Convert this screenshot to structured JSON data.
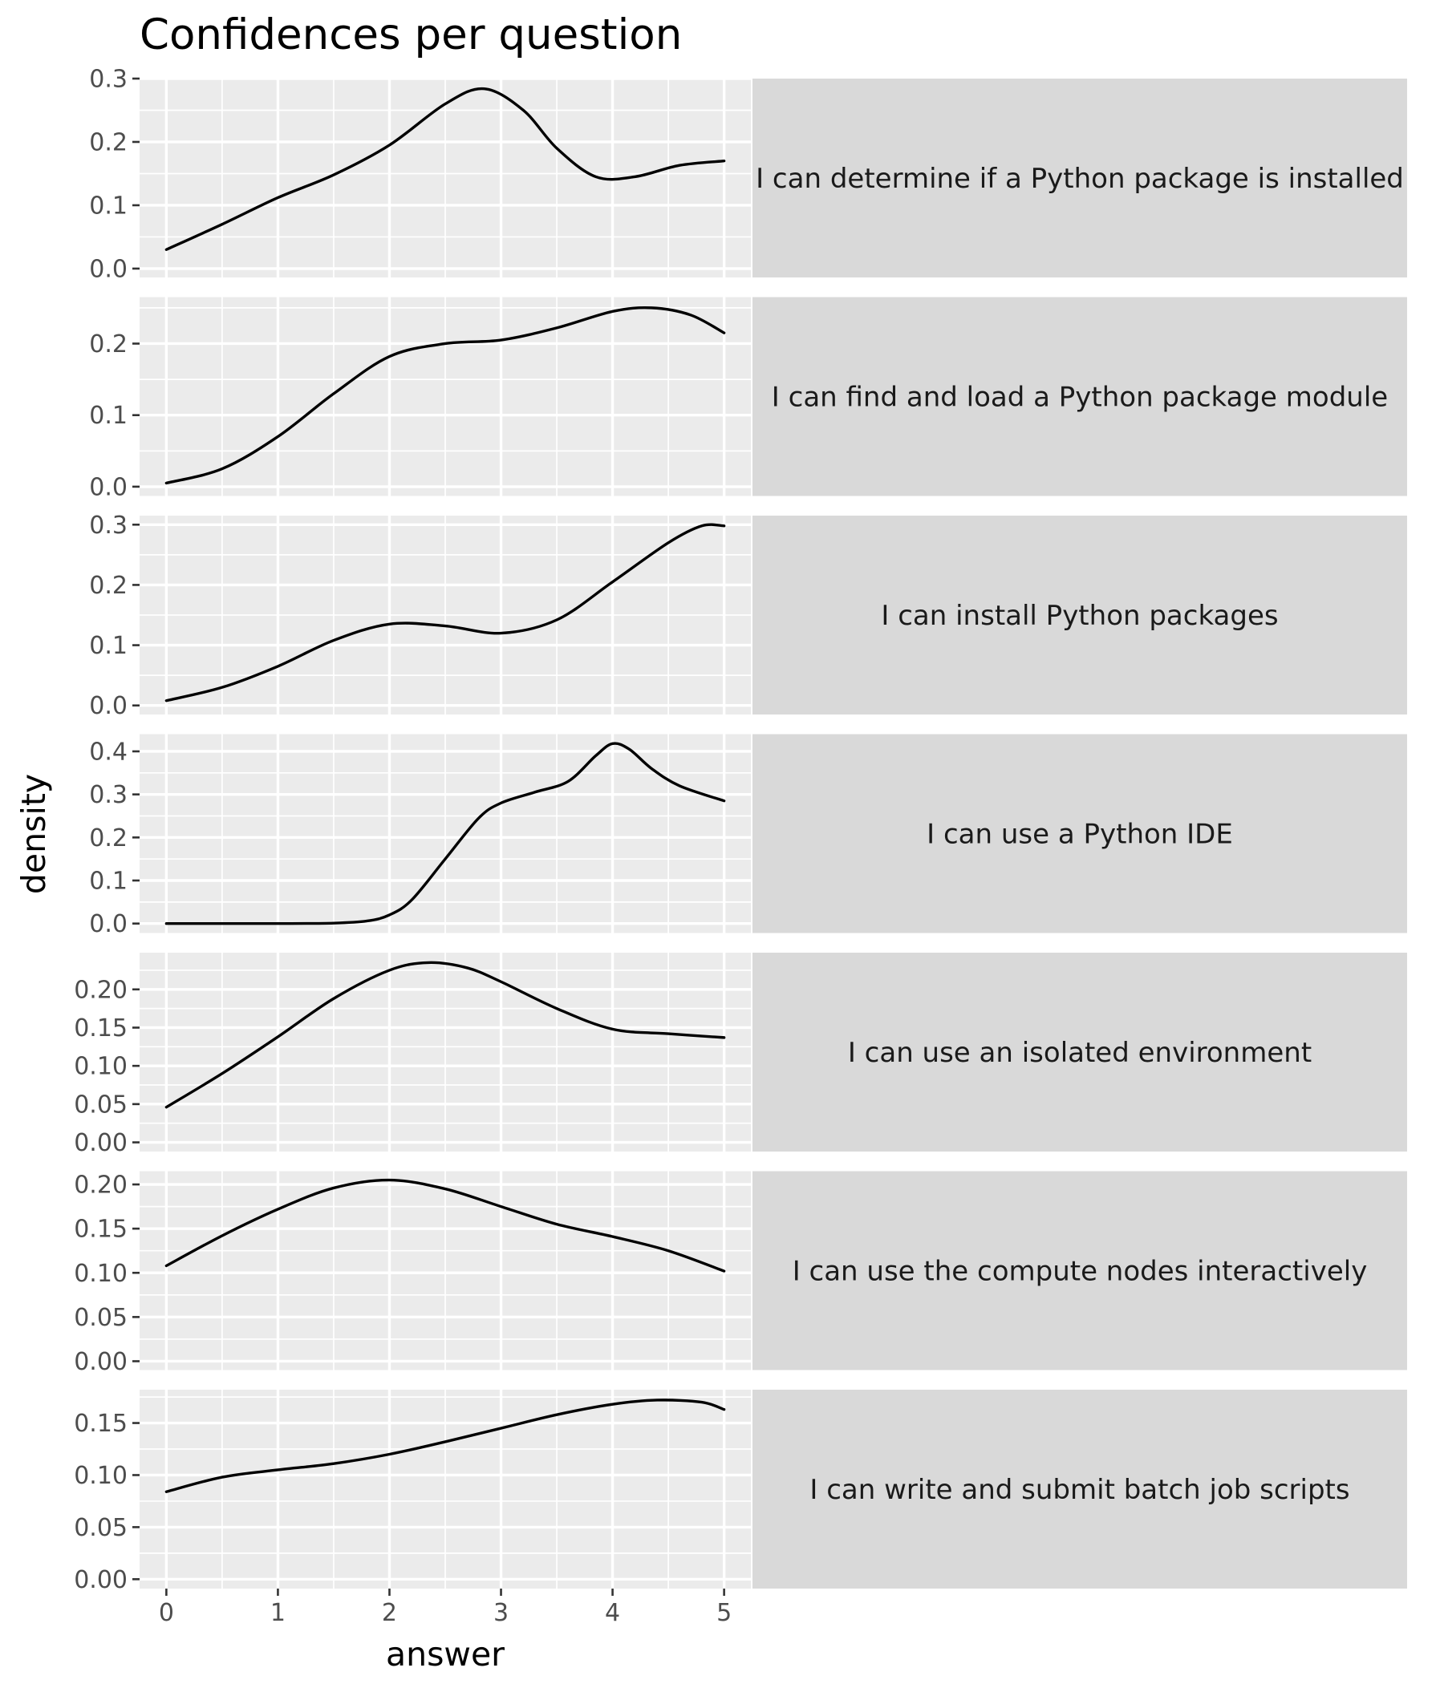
{
  "chart_data": {
    "type": "line",
    "title": "Confidences per question",
    "xlabel": "answer",
    "ylabel": "density",
    "xlim": [
      -0.24,
      5.24
    ],
    "x_ticks": [
      0,
      1,
      2,
      3,
      4,
      5
    ],
    "x_tick_labels": [
      "0",
      "1",
      "2",
      "3",
      "4",
      "5"
    ],
    "grid": true,
    "facets": [
      {
        "label": "I can determine if a Python package is installed",
        "ylim": [
          -0.014,
          0.3
        ],
        "y_ticks": [
          0.0,
          0.1,
          0.2,
          0.3
        ],
        "y_tick_labels": [
          "0.0",
          "0.1",
          "0.2",
          "0.3"
        ],
        "x": [
          0,
          0.5,
          1,
          1.5,
          2,
          2.5,
          2.85,
          3.2,
          3.5,
          3.85,
          4.2,
          4.6,
          5
        ],
        "y": [
          0.03,
          0.07,
          0.112,
          0.148,
          0.195,
          0.26,
          0.284,
          0.25,
          0.19,
          0.145,
          0.145,
          0.163,
          0.17
        ]
      },
      {
        "label": "I can find and load a Python package module",
        "ylim": [
          -0.013,
          0.265
        ],
        "y_ticks": [
          0.0,
          0.1,
          0.2
        ],
        "y_tick_labels": [
          "0.0",
          "0.1",
          "0.2"
        ],
        "x": [
          0,
          0.5,
          1,
          1.5,
          2,
          2.5,
          3,
          3.5,
          4,
          4.35,
          4.7,
          5
        ],
        "y": [
          0.005,
          0.025,
          0.07,
          0.13,
          0.182,
          0.2,
          0.205,
          0.222,
          0.245,
          0.25,
          0.24,
          0.215
        ]
      },
      {
        "label": "I can install Python packages",
        "ylim": [
          -0.015,
          0.315
        ],
        "y_ticks": [
          0.0,
          0.1,
          0.2,
          0.3
        ],
        "y_tick_labels": [
          "0.0",
          "0.1",
          "0.2",
          "0.3"
        ],
        "x": [
          0,
          0.5,
          1,
          1.5,
          2,
          2.5,
          3,
          3.5,
          4,
          4.5,
          4.8,
          5
        ],
        "y": [
          0.008,
          0.03,
          0.065,
          0.108,
          0.135,
          0.132,
          0.12,
          0.142,
          0.205,
          0.27,
          0.298,
          0.298
        ]
      },
      {
        "label": "I can use a Python IDE",
        "ylim": [
          -0.022,
          0.44
        ],
        "y_ticks": [
          0.0,
          0.1,
          0.2,
          0.3,
          0.4
        ],
        "y_tick_labels": [
          "0.0",
          "0.1",
          "0.2",
          "0.3",
          "0.4"
        ],
        "x": [
          0,
          0.5,
          1,
          1.5,
          1.8,
          2.0,
          2.2,
          2.5,
          2.8,
          3.0,
          3.3,
          3.6,
          3.85,
          4.0,
          4.15,
          4.35,
          4.6,
          5
        ],
        "y": [
          0,
          0,
          0,
          0.001,
          0.006,
          0.02,
          0.055,
          0.15,
          0.245,
          0.28,
          0.305,
          0.33,
          0.39,
          0.418,
          0.405,
          0.36,
          0.32,
          0.285
        ]
      },
      {
        "label": "I can use an isolated environment",
        "ylim": [
          -0.012,
          0.248
        ],
        "y_ticks": [
          0.0,
          0.05,
          0.1,
          0.15,
          0.2
        ],
        "y_tick_labels": [
          "0.00",
          "0.05",
          "0.10",
          "0.15",
          "0.20"
        ],
        "x": [
          0,
          0.5,
          1,
          1.5,
          2,
          2.35,
          2.7,
          3,
          3.5,
          4,
          4.5,
          5
        ],
        "y": [
          0.046,
          0.09,
          0.138,
          0.188,
          0.225,
          0.235,
          0.228,
          0.21,
          0.175,
          0.148,
          0.142,
          0.137
        ]
      },
      {
        "label": "I can use the compute nodes interactively",
        "ylim": [
          -0.01,
          0.215
        ],
        "y_ticks": [
          0.0,
          0.05,
          0.1,
          0.15,
          0.2
        ],
        "y_tick_labels": [
          "0.00",
          "0.05",
          "0.10",
          "0.15",
          "0.20"
        ],
        "x": [
          0,
          0.5,
          1,
          1.5,
          2,
          2.5,
          3,
          3.5,
          4,
          4.5,
          5
        ],
        "y": [
          0.108,
          0.142,
          0.172,
          0.196,
          0.205,
          0.195,
          0.175,
          0.155,
          0.141,
          0.125,
          0.102
        ]
      },
      {
        "label": "I can write and submit batch job scripts",
        "ylim": [
          -0.009,
          0.182
        ],
        "y_ticks": [
          0.0,
          0.05,
          0.1,
          0.15
        ],
        "y_tick_labels": [
          "0.00",
          "0.05",
          "0.10",
          "0.15"
        ],
        "x": [
          0,
          0.5,
          1,
          1.5,
          2,
          2.5,
          3,
          3.5,
          4,
          4.4,
          4.8,
          5
        ],
        "y": [
          0.084,
          0.098,
          0.105,
          0.111,
          0.12,
          0.132,
          0.145,
          0.158,
          0.168,
          0.172,
          0.17,
          0.163
        ]
      }
    ]
  }
}
